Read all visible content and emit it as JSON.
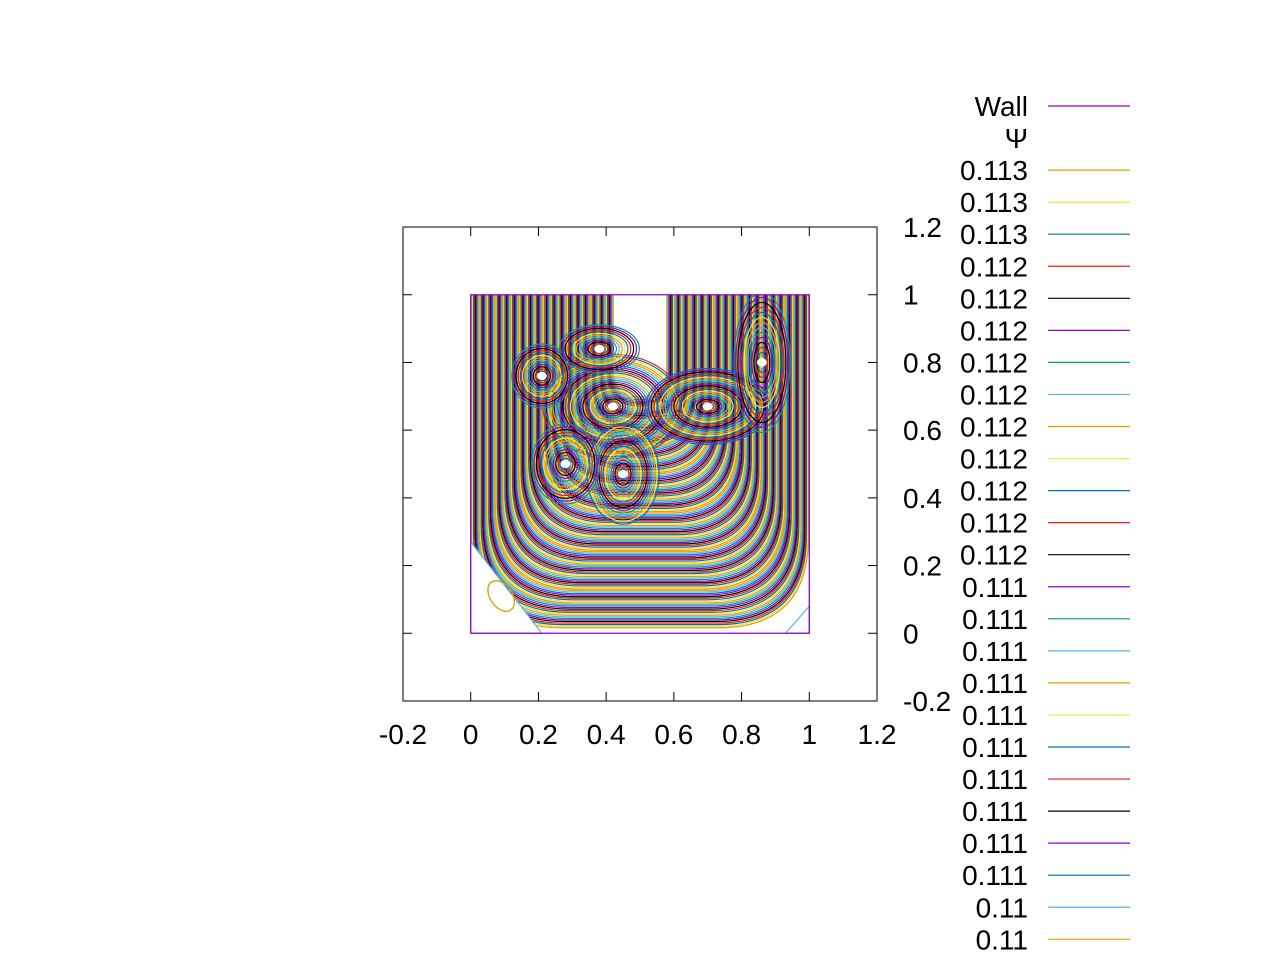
{
  "chart_data": {
    "type": "contour",
    "title": "",
    "xlabel": "",
    "ylabel": "",
    "xlim": [
      -0.2,
      1.2
    ],
    "ylim": [
      -0.2,
      1.2
    ],
    "x_ticks": [
      "-0.2",
      "0",
      "0.2",
      "0.4",
      "0.6",
      "0.8",
      "1",
      "1.2"
    ],
    "y_ticks": [
      "-0.2",
      "0",
      "0.2",
      "0.4",
      "0.6",
      "0.8",
      "1",
      "1.2"
    ],
    "x_tick_values": [
      -0.2,
      0,
      0.2,
      0.4,
      0.6,
      0.8,
      1,
      1.2
    ],
    "y_tick_values": [
      -0.2,
      0,
      0.2,
      0.4,
      0.6,
      0.8,
      1,
      1.2
    ],
    "y_axis_side": "right",
    "grid": false,
    "legend_position": "right",
    "wall": {
      "name": "Wall",
      "color": "#9400d3",
      "x": [
        0,
        1,
        1,
        0,
        0
      ],
      "y": [
        0,
        0,
        1,
        1,
        0
      ]
    },
    "psi_label": "Ψ",
    "contour_levels": [
      {
        "label": "0.113",
        "color": "#e69f00"
      },
      {
        "label": "0.113",
        "color": "#f0e442"
      },
      {
        "label": "0.113",
        "color": "#0072b2"
      },
      {
        "label": "0.112",
        "color": "#e51e10"
      },
      {
        "label": "0.112",
        "color": "#000000"
      },
      {
        "label": "0.112",
        "color": "#9400d3"
      },
      {
        "label": "0.112",
        "color": "#009e73"
      },
      {
        "label": "0.112",
        "color": "#56b4e9"
      },
      {
        "label": "0.112",
        "color": "#e69f00"
      },
      {
        "label": "0.112",
        "color": "#f0e442"
      },
      {
        "label": "0.112",
        "color": "#0072b2"
      },
      {
        "label": "0.112",
        "color": "#e51e10"
      },
      {
        "label": "0.112",
        "color": "#000000"
      },
      {
        "label": "0.111",
        "color": "#9400d3"
      },
      {
        "label": "0.111",
        "color": "#009e73"
      },
      {
        "label": "0.111",
        "color": "#56b4e9"
      },
      {
        "label": "0.111",
        "color": "#e69f00"
      },
      {
        "label": "0.111",
        "color": "#f0e442"
      },
      {
        "label": "0.111",
        "color": "#0072b2"
      },
      {
        "label": "0.111",
        "color": "#e51e10"
      },
      {
        "label": "0.111",
        "color": "#000000"
      },
      {
        "label": "0.111",
        "color": "#9400d3"
      },
      {
        "label": "0.111",
        "color": "#0072b2"
      },
      {
        "label": "0.11",
        "color": "#56b4e9"
      },
      {
        "label": "0.11",
        "color": "#e69f00"
      }
    ]
  }
}
